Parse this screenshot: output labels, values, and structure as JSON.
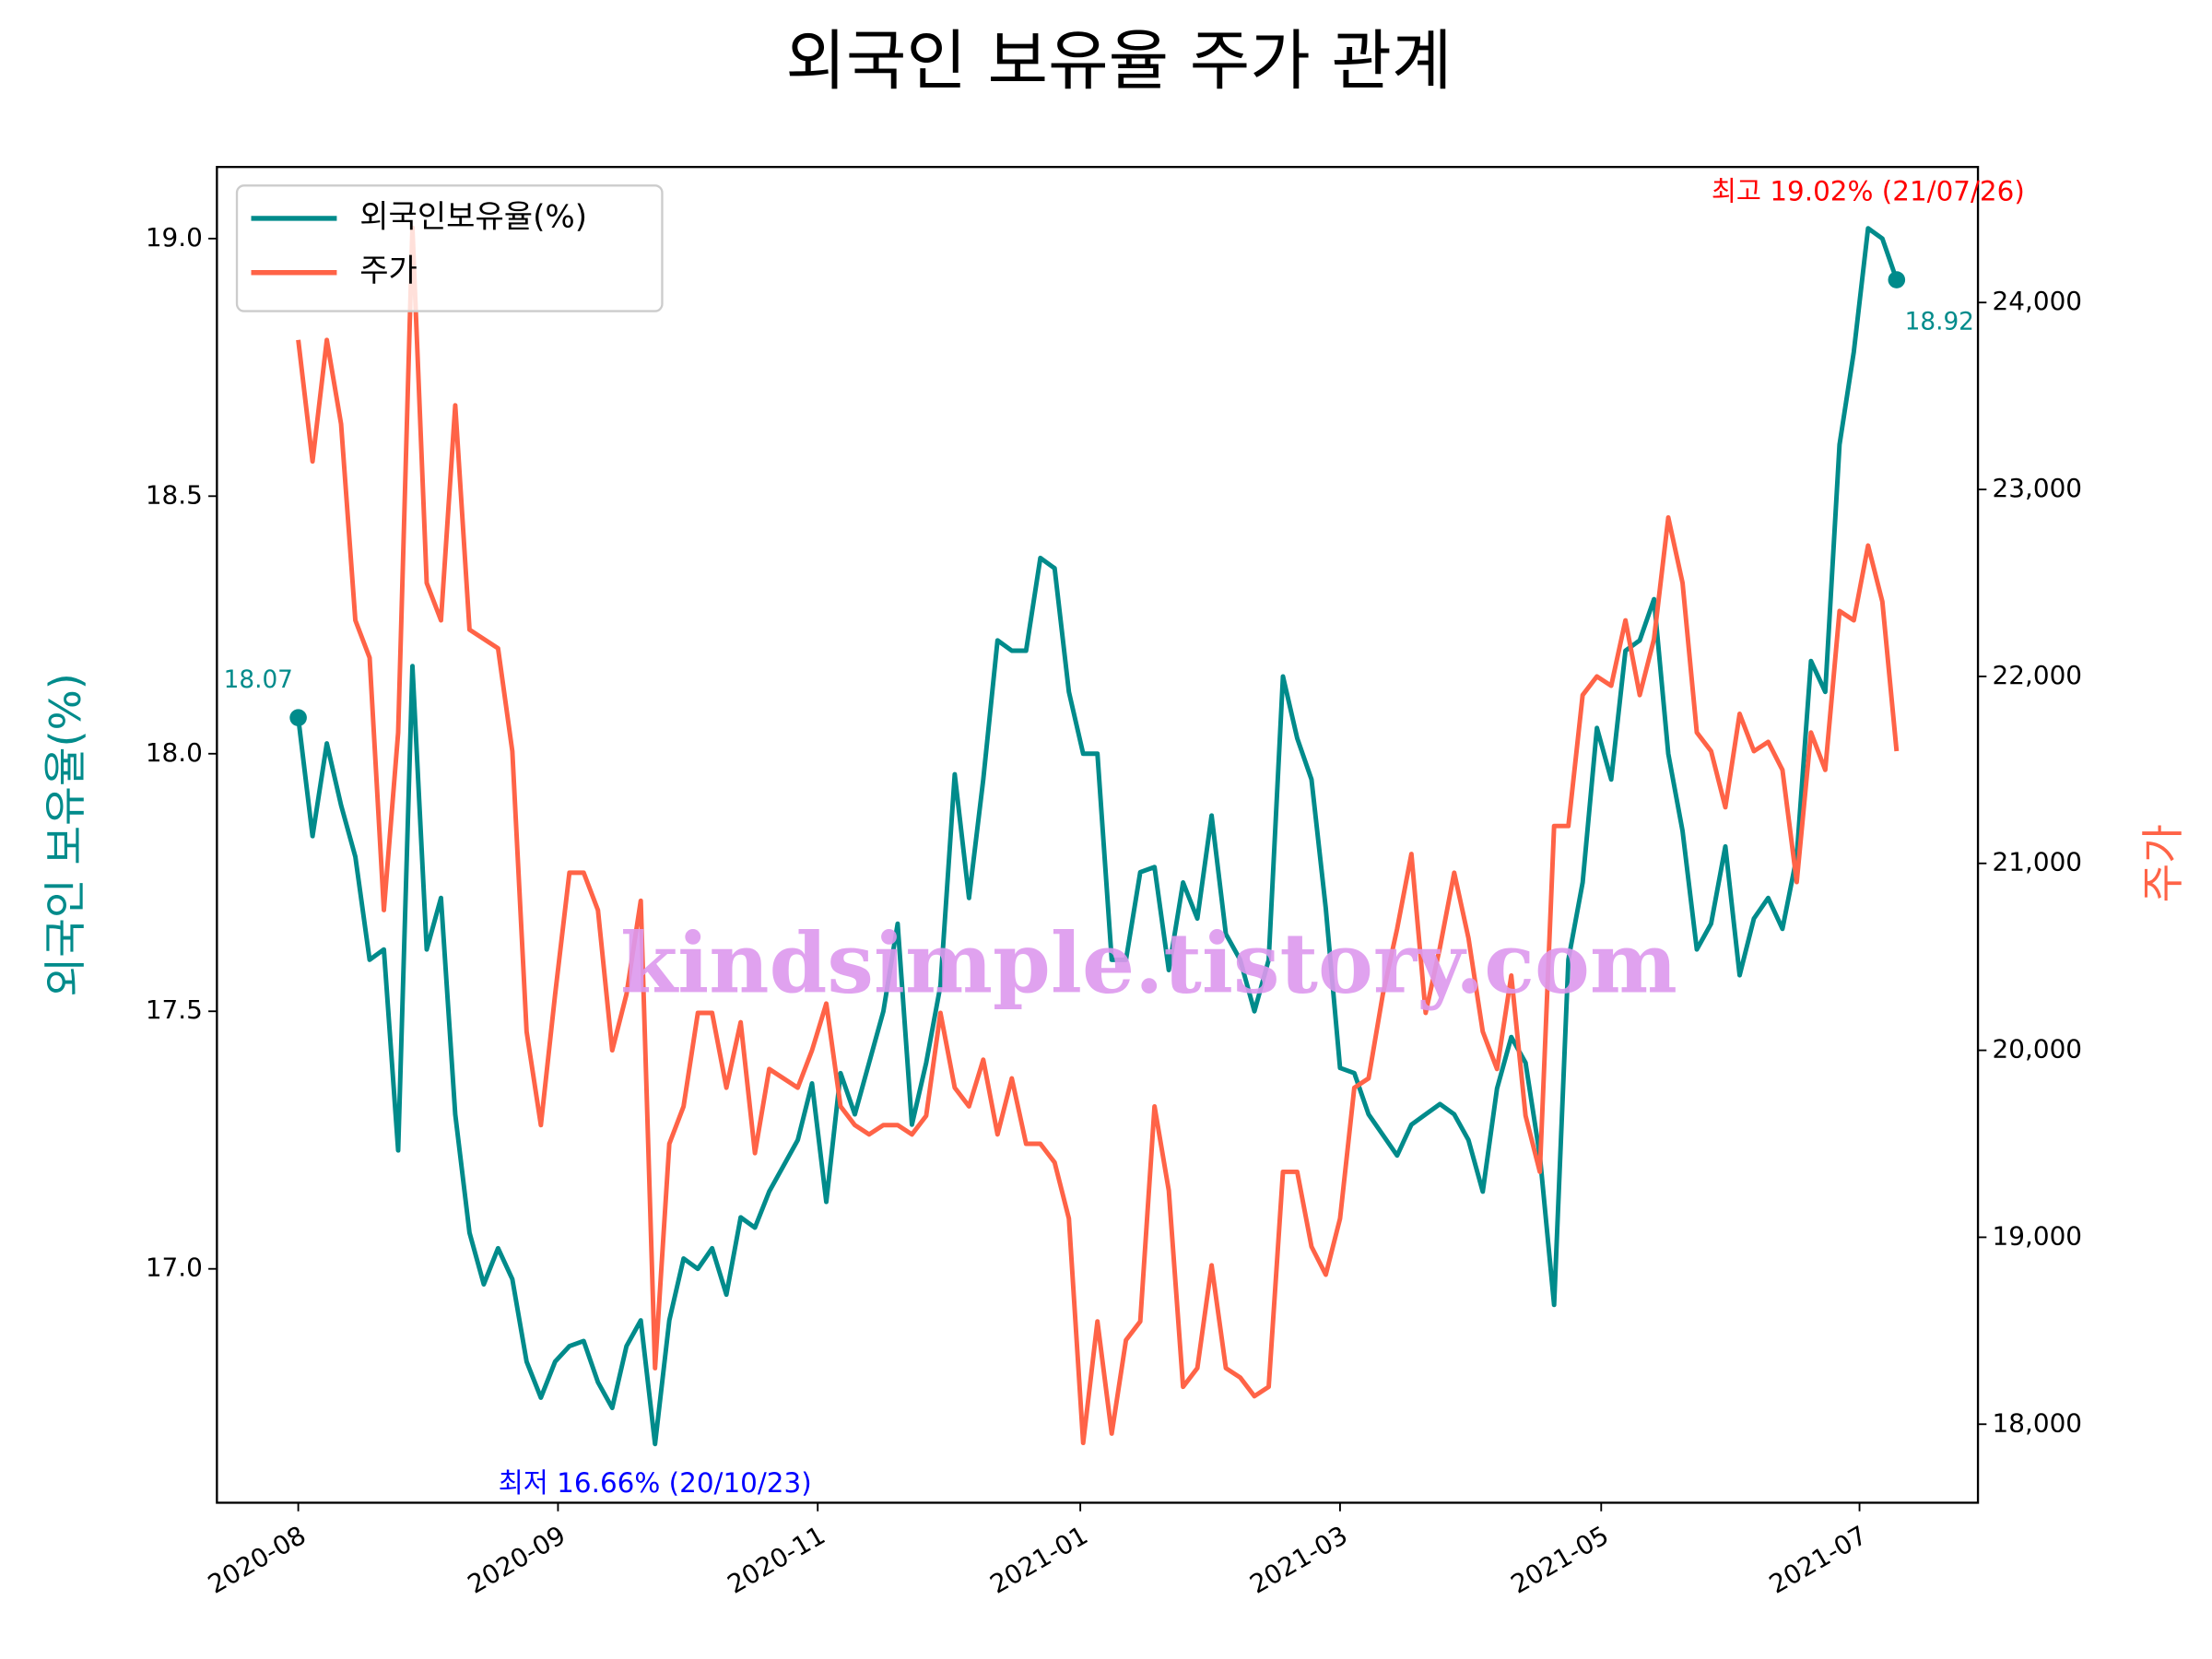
{
  "chart_data": {
    "type": "line",
    "title": "외국인 보유율 주가 관계",
    "y_label": "외국인 보유율(%)",
    "y2_label": "주가",
    "watermark": "kindsimple.tistory.com",
    "max_label": "최고 19.02% (21/07/26)",
    "min_label": "최저 16.66% (20/10/23)",
    "legend": "upper left",
    "x": [
      0,
      1,
      2,
      3,
      4,
      5,
      6,
      7,
      8,
      9,
      10,
      11,
      12,
      13,
      14,
      15,
      16,
      17,
      18,
      19,
      20,
      21,
      22,
      23,
      24,
      25,
      26,
      27,
      28,
      29,
      30,
      31,
      32,
      33,
      34,
      35,
      36,
      37,
      38,
      39,
      40,
      41,
      42,
      43,
      44,
      45,
      46,
      47,
      48,
      49,
      50,
      51,
      52,
      53,
      54,
      55,
      56,
      57,
      58,
      59,
      60,
      61,
      62,
      63,
      64,
      65,
      66,
      67,
      68,
      69,
      70,
      71,
      72,
      73,
      74,
      75,
      76,
      77,
      78,
      79,
      80,
      81,
      82,
      83,
      84,
      85,
      86,
      87,
      88,
      89,
      90,
      91,
      92,
      93,
      94,
      95,
      96,
      97,
      98,
      99,
      100,
      101,
      102,
      103,
      104,
      105,
      106,
      107,
      108,
      109,
      110,
      111,
      112
    ],
    "series": [
      {
        "name": "외국인보유율(%)",
        "color": "#008b8b",
        "axis": "y",
        "values": [
          18.07,
          17.84,
          18.02,
          17.9,
          17.8,
          17.6,
          17.62,
          17.23,
          18.17,
          17.62,
          17.72,
          17.3,
          17.07,
          16.97,
          17.04,
          16.98,
          16.82,
          16.75,
          16.82,
          16.85,
          16.86,
          16.78,
          16.73,
          16.85,
          16.9,
          16.66,
          16.9,
          17.02,
          17.0,
          17.04,
          16.95,
          17.1,
          17.08,
          17.15,
          17.2,
          17.25,
          17.36,
          17.13,
          17.38,
          17.3,
          17.4,
          17.5,
          17.67,
          17.28,
          17.4,
          17.55,
          17.96,
          17.72,
          17.95,
          18.22,
          18.2,
          18.2,
          18.38,
          18.36,
          18.12,
          18.0,
          18.0,
          17.6,
          17.6,
          17.77,
          17.78,
          17.58,
          17.75,
          17.68,
          17.88,
          17.65,
          17.6,
          17.5,
          17.6,
          18.15,
          18.03,
          17.95,
          17.7,
          17.39,
          17.38,
          17.3,
          17.26,
          17.22,
          17.28,
          17.3,
          17.32,
          17.3,
          17.25,
          17.15,
          17.35,
          17.45,
          17.4,
          17.22,
          16.93,
          17.6,
          17.75,
          18.05,
          17.95,
          18.2,
          18.22,
          18.3,
          18.0,
          17.85,
          17.62,
          17.67,
          17.82,
          17.57,
          17.68,
          17.72,
          17.66,
          17.8,
          18.18,
          18.12,
          18.6,
          18.78,
          19.02,
          19.0,
          18.92
        ]
      },
      {
        "name": "주가",
        "color": "#ff6347",
        "axis": "y2",
        "values": [
          23800,
          23150,
          23800,
          23350,
          22300,
          22100,
          20750,
          21700,
          24400,
          22500,
          22300,
          23450,
          22250,
          22200,
          22150,
          21600,
          20100,
          19600,
          20300,
          20950,
          20950,
          20750,
          20000,
          20300,
          20800,
          18300,
          19500,
          19700,
          20200,
          20200,
          19800,
          20150,
          19450,
          19900,
          19850,
          19800,
          20000,
          20250,
          19700,
          19600,
          19550,
          19600,
          19600,
          19550,
          19650,
          20200,
          19800,
          19700,
          19950,
          19550,
          19850,
          19500,
          19500,
          19400,
          19100,
          17900,
          18550,
          17950,
          18450,
          18550,
          19700,
          19250,
          18200,
          18300,
          18850,
          18300,
          18250,
          18150,
          18200,
          19350,
          19350,
          18950,
          18800,
          19100,
          19800,
          19850,
          20300,
          20650,
          21050,
          20200,
          20550,
          20950,
          20600,
          20100,
          19900,
          20400,
          19650,
          19350,
          21200,
          21200,
          21900,
          22000,
          21950,
          22300,
          21900,
          22200,
          22850,
          22500,
          21700,
          21600,
          21300,
          21800,
          21600,
          21650,
          21500,
          20900,
          21700,
          21500,
          22350,
          22300,
          22700,
          22400,
          21600
        ]
      }
    ],
    "xlim": [
      -5.7,
      117.7
    ],
    "xticks": [
      {
        "value": 0,
        "label": "2020-08"
      },
      {
        "value": 18.2,
        "label": "2020-09"
      },
      {
        "value": 36.4,
        "label": "2020-11"
      },
      {
        "value": 54.8,
        "label": "2021-01"
      },
      {
        "value": 73,
        "label": "2021-03"
      },
      {
        "value": 91.3,
        "label": "2021-05"
      },
      {
        "value": 109.4,
        "label": "2021-07"
      }
    ],
    "ylim": [
      16.546,
      19.139
    ],
    "yticks": [
      {
        "value": 17,
        "label": "17.0"
      },
      {
        "value": 17.5,
        "label": "17.5"
      },
      {
        "value": 18,
        "label": "18.0"
      },
      {
        "value": 18.5,
        "label": "18.5"
      },
      {
        "value": 19,
        "label": "19.0"
      }
    ],
    "y2lim": [
      17580,
      24725
    ],
    "y2ticks": [
      {
        "value": 18000,
        "label": "18,000"
      },
      {
        "value": 19000,
        "label": "19,000"
      },
      {
        "value": 20000,
        "label": "20,000"
      },
      {
        "value": 21000,
        "label": "21,000"
      },
      {
        "value": 22000,
        "label": "22,000"
      },
      {
        "value": 23000,
        "label": "23,000"
      },
      {
        "value": 24000,
        "label": "24,000"
      }
    ],
    "grid": false
  }
}
